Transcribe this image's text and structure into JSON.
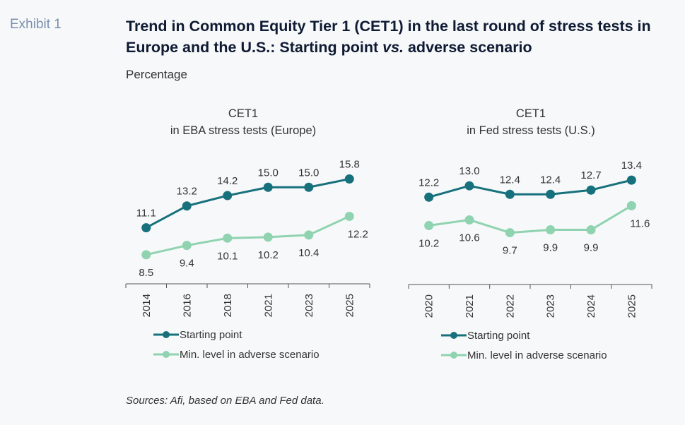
{
  "header": {
    "exhibit_label": "Exhibit 1",
    "title_part1": "Trend in Common Equity Tier 1 (CET1) in the last round of stress tests in Europe and the U.S.: Starting point ",
    "title_italic": "vs.",
    "title_part2": " adverse scenario",
    "subtitle": "Percentage"
  },
  "footer": {
    "sources": "Sources: Afi, based on EBA and Fed data."
  },
  "colors": {
    "starting_point": "#17717c",
    "adverse": "#8fd3b0",
    "axis": "#555555",
    "text": "#333333"
  },
  "chart_data": [
    {
      "type": "line",
      "title_line1": "CET1",
      "title_line2": "in EBA stress tests (Europe)",
      "categories": [
        "2014",
        "2016",
        "2018",
        "2021",
        "2023",
        "2025"
      ],
      "series": [
        {
          "name": "Starting point",
          "values": [
            11.1,
            13.2,
            14.2,
            15.0,
            15.0,
            15.8
          ],
          "label_position": "above"
        },
        {
          "name": "Min. level in adverse scenario",
          "values": [
            8.5,
            9.4,
            10.1,
            10.2,
            10.4,
            12.2
          ],
          "label_position": "below"
        }
      ],
      "xlabel": "",
      "ylabel": "",
      "ylim": [
        5.7,
        17.4
      ],
      "grid": false,
      "legend": "bottom"
    },
    {
      "type": "line",
      "title_line1": "CET1",
      "title_line2": "in Fed stress tests (U.S.)",
      "categories": [
        "2020",
        "2021",
        "2022",
        "2023",
        "2024",
        "2025"
      ],
      "series": [
        {
          "name": "Starting point",
          "values": [
            12.2,
            13.0,
            12.4,
            12.4,
            12.7,
            13.4
          ],
          "label_position": "above"
        },
        {
          "name": "Min. level in adverse scenario",
          "values": [
            10.2,
            10.6,
            9.7,
            9.9,
            9.9,
            11.6
          ],
          "label_position": "below"
        }
      ],
      "xlabel": "",
      "ylabel": "",
      "ylim": [
        6.05,
        14.65
      ],
      "grid": false,
      "legend": "bottom"
    }
  ]
}
